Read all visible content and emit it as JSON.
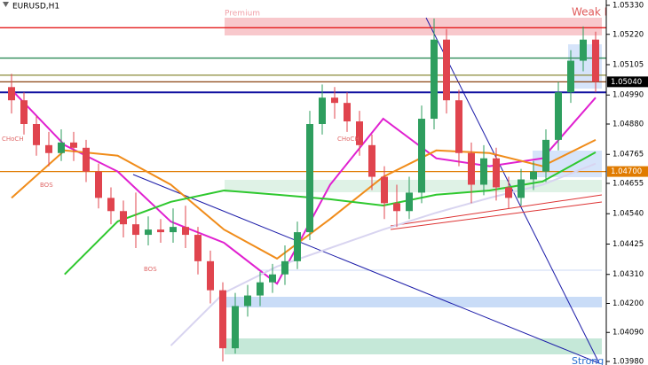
{
  "chart_data": {
    "type": "candlestick",
    "title": "EURUSD,H1",
    "ylim": [
      1.0398,
      1.0533
    ],
    "yticks": [
      {
        "value": 1.0533,
        "label": "1.05330"
      },
      {
        "value": 1.0522,
        "label": "1.05220"
      },
      {
        "value": 1.05105,
        "label": "1.05105"
      },
      {
        "value": 1.0499,
        "label": "1.04990"
      },
      {
        "value": 1.0488,
        "label": "1.04880"
      },
      {
        "value": 1.04765,
        "label": "1.04765"
      },
      {
        "value": 1.04655,
        "label": "1.04655"
      },
      {
        "value": 1.0454,
        "label": "1.04540"
      },
      {
        "value": 1.04425,
        "label": "1.04425"
      },
      {
        "value": 1.0431,
        "label": "1.04310"
      },
      {
        "value": 1.042,
        "label": "1.04200"
      },
      {
        "value": 1.0409,
        "label": "1.04090"
      },
      {
        "value": 1.0398,
        "label": "1.03980"
      }
    ],
    "up_color": "#2e9e5e",
    "down_color": "#e0444e",
    "candles": [
      [
        1.0502,
        1.0507,
        1.0492,
        1.0497
      ],
      [
        1.0497,
        1.05,
        1.0484,
        1.0488
      ],
      [
        1.0488,
        1.0491,
        1.0476,
        1.048
      ],
      [
        1.048,
        1.0485,
        1.0472,
        1.0477
      ],
      [
        1.0477,
        1.0486,
        1.0474,
        1.0481
      ],
      [
        1.0481,
        1.0485,
        1.0474,
        1.0479
      ],
      [
        1.0479,
        1.0482,
        1.0466,
        1.047
      ],
      [
        1.047,
        1.0473,
        1.0456,
        1.046
      ],
      [
        1.046,
        1.0464,
        1.045,
        1.0455
      ],
      [
        1.0455,
        1.0459,
        1.0445,
        1.045
      ],
      [
        1.045,
        1.0462,
        1.0441,
        1.0446
      ],
      [
        1.0446,
        1.0453,
        1.0442,
        1.0448
      ],
      [
        1.0448,
        1.0452,
        1.0443,
        1.0447
      ],
      [
        1.0447,
        1.0456,
        1.0443,
        1.0449
      ],
      [
        1.0449,
        1.0457,
        1.0441,
        1.0446
      ],
      [
        1.0446,
        1.0449,
        1.0431,
        1.0436
      ],
      [
        1.0436,
        1.044,
        1.042,
        1.0425
      ],
      [
        1.0425,
        1.0428,
        1.0398,
        1.0403
      ],
      [
        1.0403,
        1.0424,
        1.0401,
        1.0419
      ],
      [
        1.0419,
        1.0427,
        1.0415,
        1.0423
      ],
      [
        1.0423,
        1.0432,
        1.0419,
        1.0428
      ],
      [
        1.0428,
        1.0435,
        1.0424,
        1.0431
      ],
      [
        1.0431,
        1.0442,
        1.0427,
        1.0436
      ],
      [
        1.0436,
        1.0451,
        1.0433,
        1.0447
      ],
      [
        1.0447,
        1.0493,
        1.0444,
        1.0488
      ],
      [
        1.0488,
        1.0503,
        1.0484,
        1.0498
      ],
      [
        1.0498,
        1.0502,
        1.049,
        1.0496
      ],
      [
        1.0496,
        1.05,
        1.0485,
        1.0489
      ],
      [
        1.0489,
        1.0493,
        1.0476,
        1.048
      ],
      [
        1.048,
        1.0484,
        1.0463,
        1.0468
      ],
      [
        1.0468,
        1.0472,
        1.0452,
        1.0458
      ],
      [
        1.0458,
        1.0465,
        1.0449,
        1.0455
      ],
      [
        1.0455,
        1.0468,
        1.0452,
        1.0462
      ],
      [
        1.0462,
        1.0495,
        1.0458,
        1.049
      ],
      [
        1.049,
        1.0528,
        1.0486,
        1.052
      ],
      [
        1.052,
        1.0524,
        1.0492,
        1.0497
      ],
      [
        1.0497,
        1.0501,
        1.0472,
        1.0477
      ],
      [
        1.0477,
        1.0481,
        1.0458,
        1.0465
      ],
      [
        1.0465,
        1.048,
        1.0461,
        1.0475
      ],
      [
        1.0475,
        1.0479,
        1.0459,
        1.0464
      ],
      [
        1.0464,
        1.0468,
        1.0456,
        1.046
      ],
      [
        1.046,
        1.0471,
        1.0457,
        1.0467
      ],
      [
        1.0467,
        1.0474,
        1.0463,
        1.047
      ],
      [
        1.047,
        1.0486,
        1.0466,
        1.0482
      ],
      [
        1.0482,
        1.0504,
        1.0478,
        1.05
      ],
      [
        1.05,
        1.0516,
        1.0496,
        1.0512
      ],
      [
        1.0512,
        1.0525,
        1.0508,
        1.052
      ],
      [
        1.052,
        1.0523,
        1.05,
        1.0504
      ]
    ],
    "series": [
      {
        "color": "#e020d0",
        "values": [
          1.0501,
          1.048,
          1.047,
          1.0451,
          1.0443,
          1.04275,
          1.0465,
          1.049,
          1.0475,
          1.0472,
          1.0475,
          1.0498
        ]
      },
      {
        "color": "#f08c1a",
        "values": [
          1.046,
          1.0478,
          1.0476,
          1.0465,
          1.0448,
          1.0437,
          1.0452,
          1.0468,
          1.0478,
          1.0477,
          1.0472,
          1.0482
        ]
      },
      {
        "color": "#2ec82e",
        "values": [
          null,
          1.0431,
          1.04511,
          1.04585,
          1.04628,
          1.04612,
          1.04595,
          1.04571,
          1.04612,
          1.04628,
          1.04662,
          1.04773
        ]
      },
      {
        "color": "#d8d4f0",
        "values": [
          null,
          null,
          null,
          1.0404,
          1.0424,
          1.0434,
          1.0441,
          1.0448,
          1.04544,
          1.046,
          1.0465,
          1.0473
        ]
      }
    ],
    "levels": [
      {
        "value": 1.05245,
        "color": "#e41b1b"
      },
      {
        "value": 1.0513,
        "color": "#2e8b57"
      },
      {
        "value": 1.05065,
        "color": "#8b8b3a"
      },
      {
        "value": 1.0504,
        "color": "#8b4513",
        "label": "1.05040"
      },
      {
        "value": 1.05,
        "color": "#1010a0"
      },
      {
        "value": 1.047,
        "color": "#e07b00",
        "label": "1.04700"
      }
    ],
    "annotations": [
      "Premium",
      "Weak H",
      "Strong",
      "CHoCH",
      "CHoCH",
      "BOS",
      "BOS"
    ]
  }
}
